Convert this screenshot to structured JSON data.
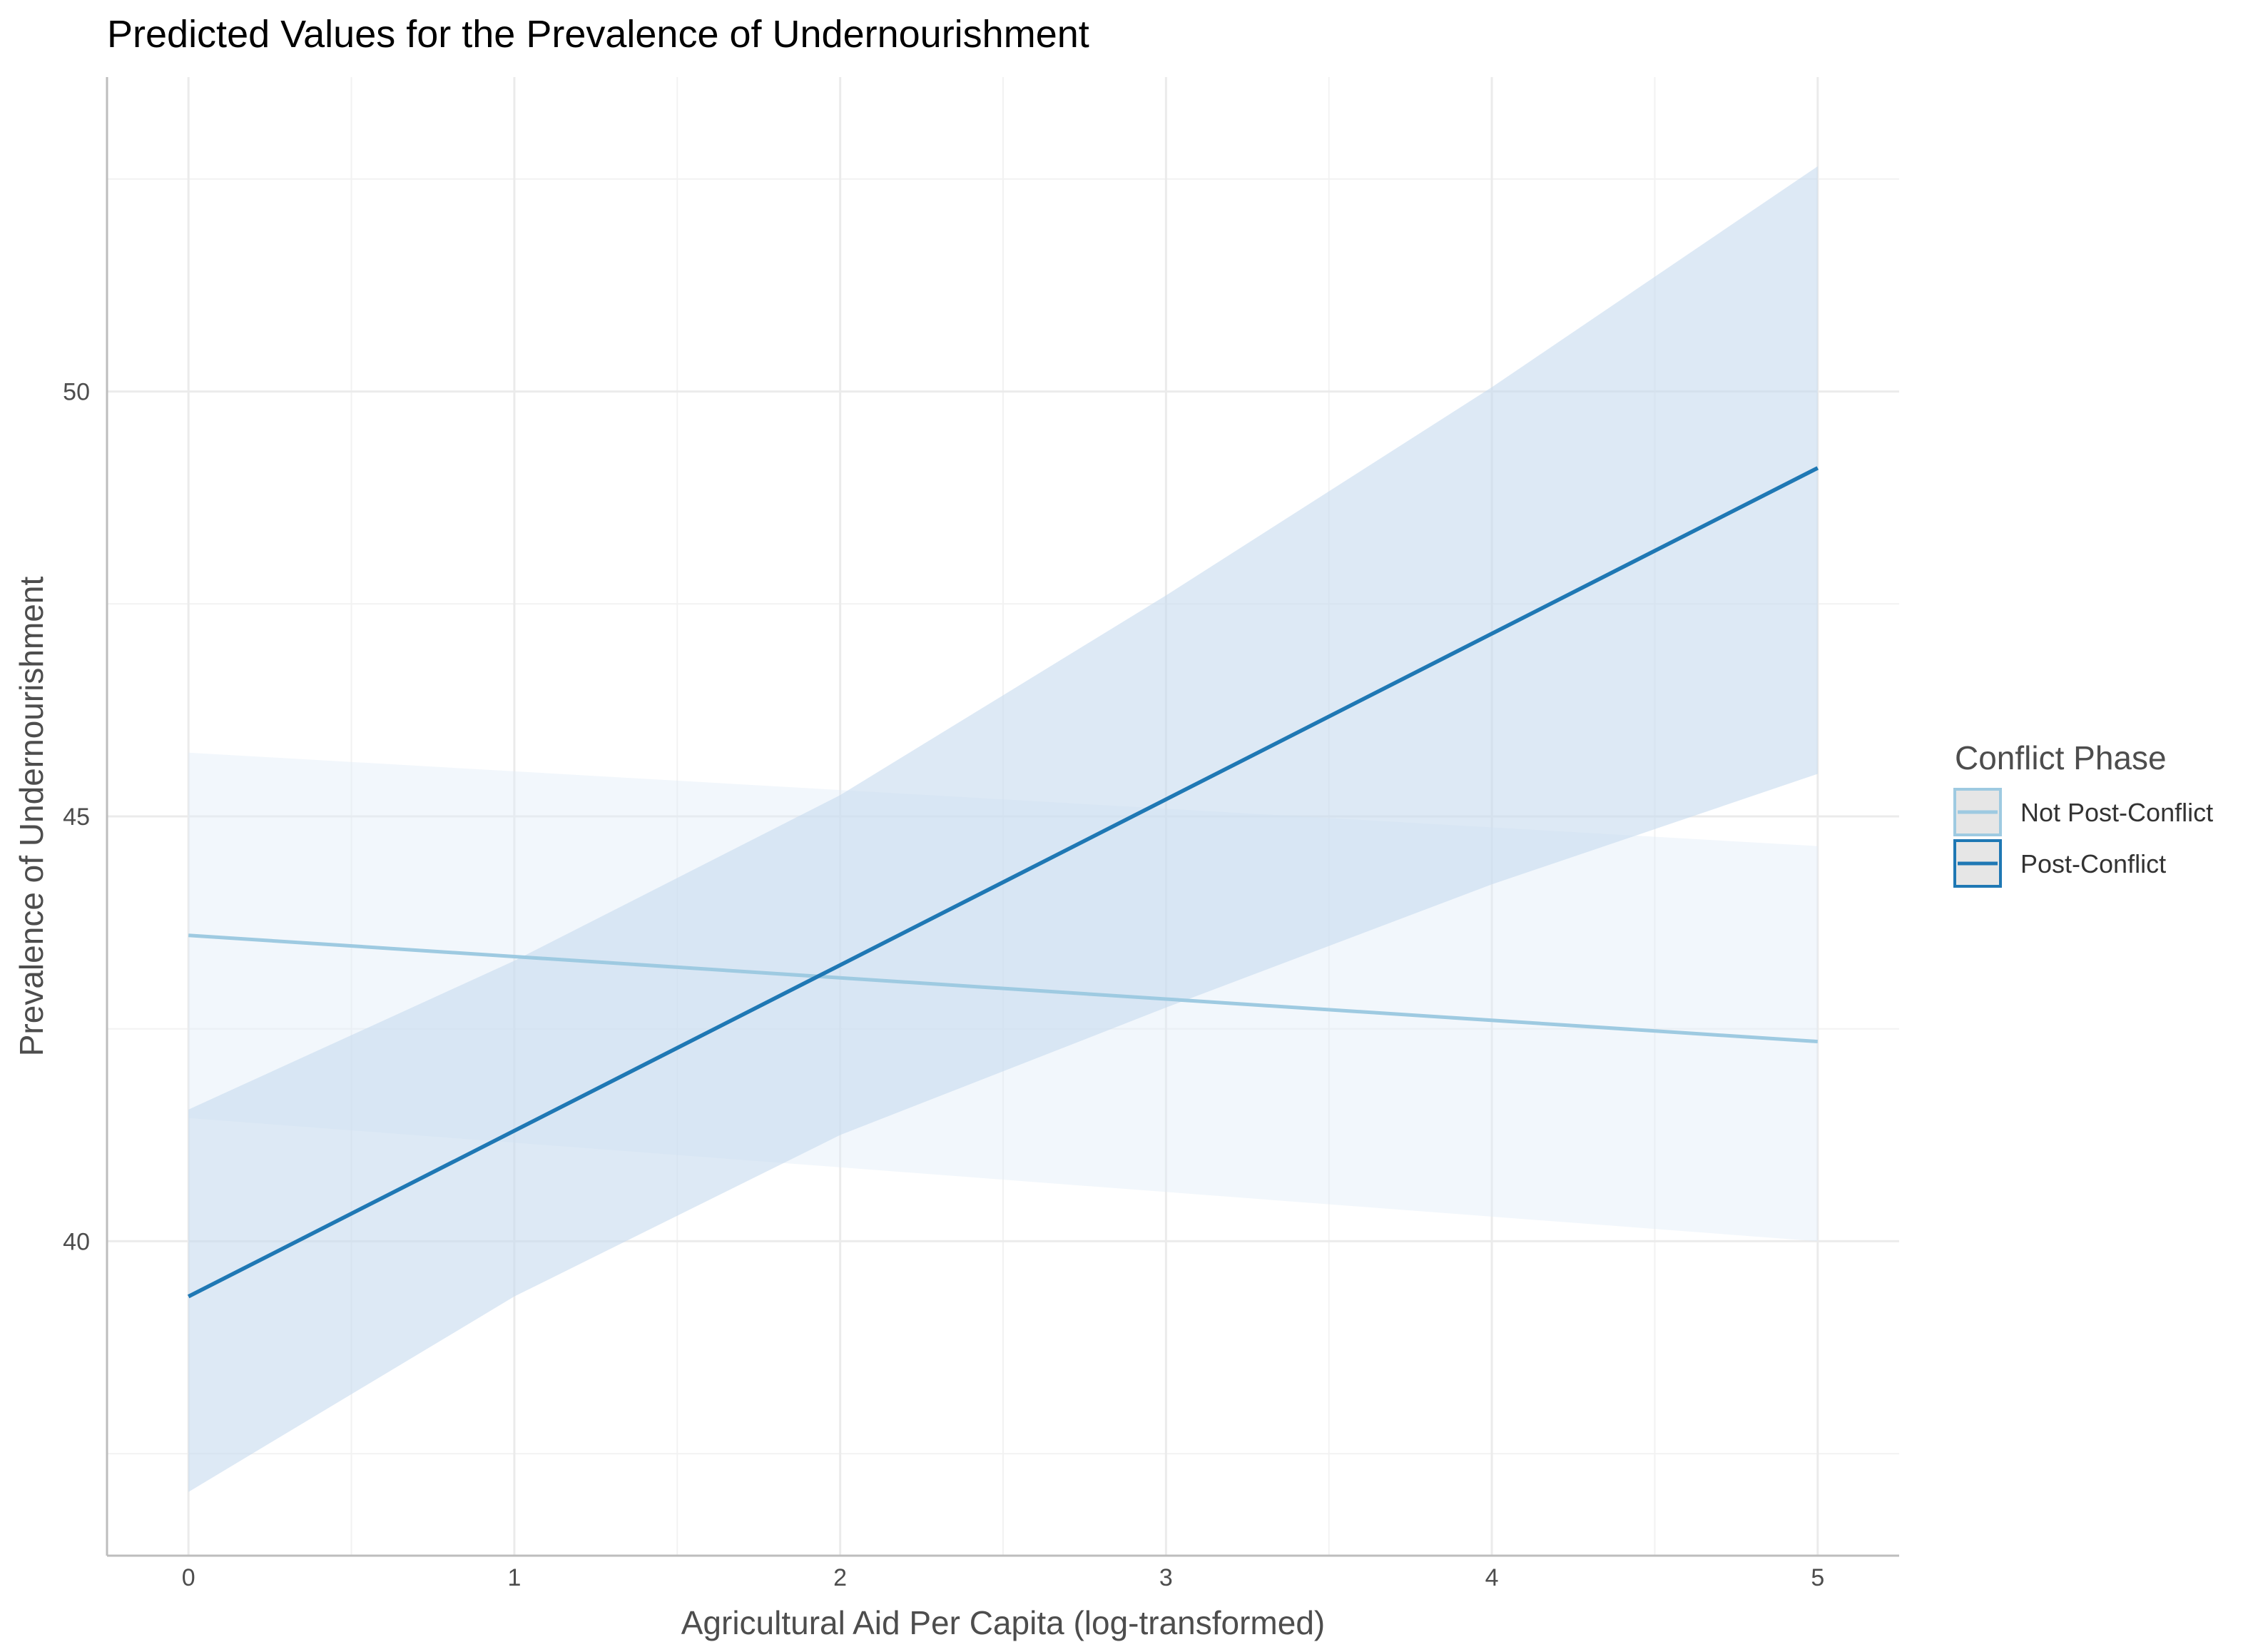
{
  "chart_data": {
    "type": "line",
    "title": "Predicted Values for the Prevalence of Undernourishment",
    "xlabel": "Agricultural Aid Per Capita (log-transformed)",
    "ylabel": "Prevalence of Undernourishment",
    "xlim": [
      -0.25,
      5.25
    ],
    "ylim": [
      36.3,
      53.7
    ],
    "x_ticks": [
      0,
      1,
      2,
      3,
      4,
      5
    ],
    "x_tick_labels": [
      "0",
      "1",
      "2",
      "3",
      "4",
      "5"
    ],
    "y_ticks": [
      40,
      45,
      50
    ],
    "y_tick_labels": [
      "40",
      "45",
      "50"
    ],
    "grid": true,
    "legend": {
      "title": "Conflict Phase",
      "position": "right",
      "entries": [
        "Not Post-Conflict",
        "Post-Conflict"
      ]
    },
    "series": [
      {
        "name": "Not Post-Conflict",
        "color": "#9ecae1",
        "ribbon_color": "#deebf7",
        "x": [
          0,
          5
        ],
        "y": [
          43.6,
          42.35
        ],
        "lower": [
          41.45,
          40.0
        ],
        "upper": [
          45.75,
          44.65
        ]
      },
      {
        "name": "Post-Conflict",
        "color": "#1f78b4",
        "ribbon_color": "#c6dbef",
        "x": [
          0,
          1,
          2,
          3,
          4,
          5
        ],
        "y": [
          39.35,
          41.3,
          43.25,
          45.2,
          47.15,
          49.1
        ],
        "lower": [
          37.05,
          39.35,
          41.25,
          42.75,
          44.2,
          45.5
        ],
        "upper": [
          41.55,
          43.3,
          45.25,
          47.6,
          50.05,
          52.65
        ]
      }
    ]
  }
}
